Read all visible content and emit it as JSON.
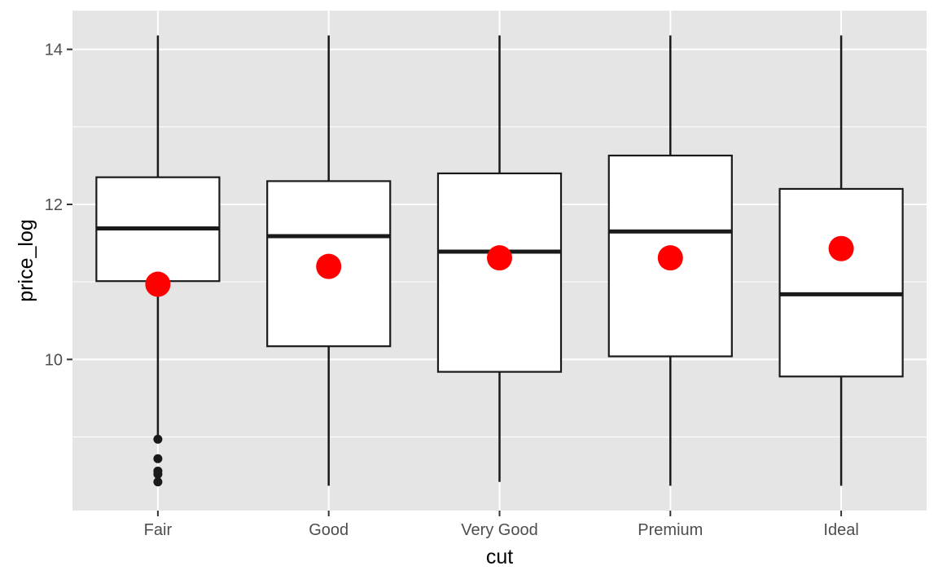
{
  "chart_data": {
    "type": "boxplot",
    "xlabel": "cut",
    "ylabel": "price_log",
    "categories": [
      "Fair",
      "Good",
      "Very Good",
      "Premium",
      "Ideal"
    ],
    "ylim": [
      8.05,
      14.5
    ],
    "yticks_major": [
      10,
      12,
      14
    ],
    "yticks_minor": [
      9,
      11,
      13
    ],
    "grid": true,
    "legend": "none",
    "boxes": [
      {
        "category": "Fair",
        "whisker_low": 8.97,
        "q1": 11.01,
        "median": 11.69,
        "q3": 12.35,
        "whisker_high": 14.18,
        "outliers": [
          8.97,
          8.72,
          8.56,
          8.52,
          8.42
        ],
        "mean": 10.97
      },
      {
        "category": "Good",
        "whisker_low": 8.37,
        "q1": 10.17,
        "median": 11.59,
        "q3": 12.3,
        "whisker_high": 14.18,
        "outliers": [],
        "mean": 11.2
      },
      {
        "category": "Very Good",
        "whisker_low": 8.42,
        "q1": 9.84,
        "median": 11.39,
        "q3": 12.4,
        "whisker_high": 14.18,
        "outliers": [],
        "mean": 11.31
      },
      {
        "category": "Premium",
        "whisker_low": 8.37,
        "q1": 10.04,
        "median": 11.65,
        "q3": 12.63,
        "whisker_high": 14.18,
        "outliers": [],
        "mean": 11.31
      },
      {
        "category": "Ideal",
        "whisker_low": 8.37,
        "q1": 9.78,
        "median": 10.84,
        "q3": 12.2,
        "whisker_high": 14.18,
        "outliers": [],
        "mean": 11.43
      }
    ],
    "colors": {
      "panel_background": "#e5e5e5",
      "grid": "#ffffff",
      "box_fill": "#ffffff",
      "box_line": "#1a1a1a",
      "mean_point": "#ff0000",
      "outlier": "#1a1a1a",
      "tick_label": "#4d4d4d",
      "axis_title": "#000000"
    }
  }
}
